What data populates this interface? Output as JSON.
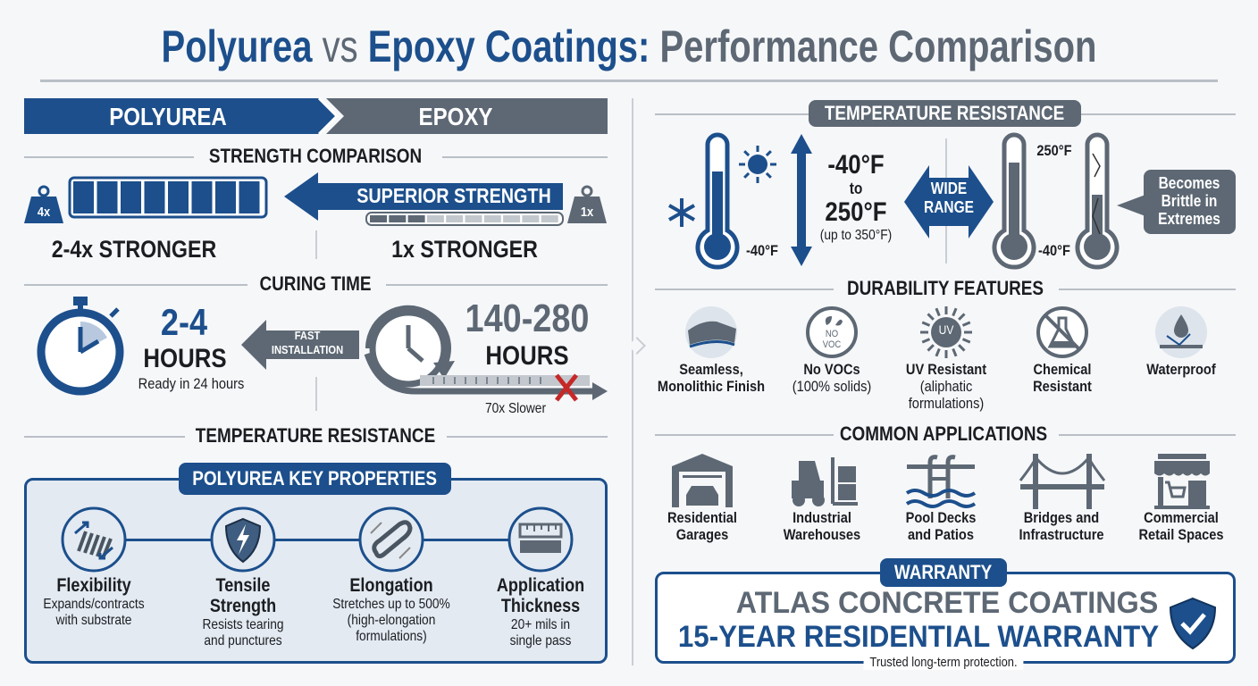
{
  "title": {
    "part1": "Polyurea",
    "vs": "vs",
    "part2": "Epoxy Coatings:",
    "part3": "Performance Comparison"
  },
  "colors": {
    "polyurea_blue": "#1c4f8c",
    "epoxy_gray": "#5d6874",
    "panel_bg": "#e3eaf2",
    "alert_red": "#c62828"
  },
  "left": {
    "header": {
      "polyurea": "POLYUREA",
      "epoxy": "EPOXY"
    },
    "strength": {
      "heading": "STRENGTH COMPARISON",
      "polyurea_weight": "4x",
      "epoxy_weight": "1x",
      "arrow_label": "SUPERIOR STRENGTH",
      "polyurea_result": "2-4x STRONGER",
      "epoxy_result": "1x STRONGER",
      "polyurea_level": 4,
      "epoxy_level": 1
    },
    "curing": {
      "heading": "CURING TIME",
      "polyurea_value": "2-4",
      "polyurea_unit": "HOURS",
      "polyurea_note": "Ready in 24 hours",
      "arrow_line1": "FAST",
      "arrow_line2": "INSTALLATION",
      "epoxy_value": "140-280",
      "epoxy_unit": "HOURS",
      "epoxy_note": "70x Slower"
    },
    "temperature_heading": "TEMPERATURE RESISTANCE",
    "key_properties": {
      "heading": "POLYUREA KEY PROPERTIES",
      "items": [
        {
          "icon": "spring-icon",
          "title": "Flexibility",
          "desc1": "Expands/contracts",
          "desc2": "with substrate"
        },
        {
          "icon": "shield-lightning-icon",
          "title": "Tensile",
          "title2": "Strength",
          "desc1": "Resists tearing",
          "desc2": "and punctures"
        },
        {
          "icon": "stretch-band-icon",
          "title": "Elongation",
          "desc1": "Stretches up to 500%",
          "desc2": "(high-elongation",
          "desc3": "formulations)"
        },
        {
          "icon": "ruler-icon",
          "title": "Application",
          "title2": "Thickness",
          "desc1": "20+ mils in",
          "desc2": "single pass"
        }
      ]
    }
  },
  "right": {
    "temperature": {
      "heading": "TEMPERATURE RESISTANCE",
      "polyurea_low": "-40°F",
      "range_line1": "-40°F",
      "range_line2": "to",
      "range_line3": "250°F",
      "range_note": "(up to 350°F)",
      "wide_line1": "WIDE",
      "wide_line2": "RANGE",
      "epoxy_high": "250°F",
      "epoxy_low": "-40°F",
      "callout1": "Becomes",
      "callout2": "Brittle in",
      "callout3": "Extremes"
    },
    "durability": {
      "heading": "DURABILITY FEATURES",
      "no_voc_badge1": "NO",
      "no_voc_badge2": "VOC",
      "uv_badge": "UV",
      "items": [
        {
          "icon": "seamless-layer-icon",
          "l1": "Seamless,",
          "l2": "Monolithic Finish"
        },
        {
          "icon": "no-voc-icon",
          "l1": "No VOCs",
          "l2": "(100% solids)"
        },
        {
          "icon": "uv-sun-icon",
          "l1": "UV Resistant",
          "l2": "(aliphatic",
          "l3": "formulations)"
        },
        {
          "icon": "chemical-flask-icon",
          "l1": "Chemical",
          "l2": "Resistant"
        },
        {
          "icon": "water-drop-icon",
          "l1": "Waterproof"
        }
      ]
    },
    "applications": {
      "heading": "COMMON APPLICATIONS",
      "items": [
        {
          "icon": "garage-car-icon",
          "l1": "Residential",
          "l2": "Garages"
        },
        {
          "icon": "forklift-icon",
          "l1": "Industrial",
          "l2": "Warehouses"
        },
        {
          "icon": "pool-ladder-icon",
          "l1": "Pool Decks",
          "l2": "and Patios"
        },
        {
          "icon": "bridge-icon",
          "l1": "Bridges and",
          "l2": "Infrastructure"
        },
        {
          "icon": "storefront-cart-icon",
          "l1": "Commercial",
          "l2": "Retail Spaces"
        }
      ]
    },
    "warranty": {
      "badge": "WARRANTY",
      "company": "ATLAS CONCRETE COATINGS",
      "headline": "15-YEAR RESIDENTIAL WARRANTY",
      "tagline": "Trusted long-term protection."
    }
  }
}
